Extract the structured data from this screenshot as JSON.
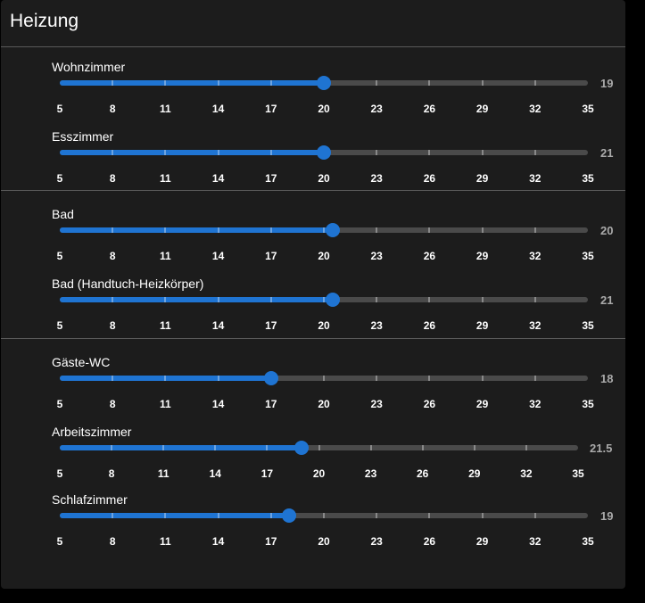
{
  "title": "Heizung",
  "colors": {
    "accent": "#1f74d2",
    "track": "#4a4a4a",
    "card": "#1c1c1c"
  },
  "groups": [
    [
      {
        "label": "Wohnzimmer",
        "value_text": "19",
        "slider_value": 20,
        "min": 5,
        "max": 35,
        "step": 3
      },
      {
        "label": "Esszimmer",
        "value_text": "21",
        "slider_value": 20,
        "min": 5,
        "max": 35,
        "step": 3
      }
    ],
    [
      {
        "label": "Bad",
        "value_text": "20",
        "slider_value": 20.5,
        "min": 5,
        "max": 35,
        "step": 3
      },
      {
        "label": "Bad (Handtuch-Heizkörper)",
        "value_text": "21",
        "slider_value": 20.5,
        "min": 5,
        "max": 35,
        "step": 3
      }
    ],
    [
      {
        "label": "Gäste-WC",
        "value_text": "18",
        "slider_value": 17,
        "min": 5,
        "max": 35,
        "step": 3
      },
      {
        "label": "Arbeitszimmer",
        "value_text": "21.5",
        "slider_value": 19,
        "min": 5,
        "max": 35,
        "step": 3
      },
      {
        "label": "Schlafzimmer",
        "value_text": "19",
        "slider_value": 18,
        "min": 5,
        "max": 35,
        "step": 3
      }
    ]
  ]
}
